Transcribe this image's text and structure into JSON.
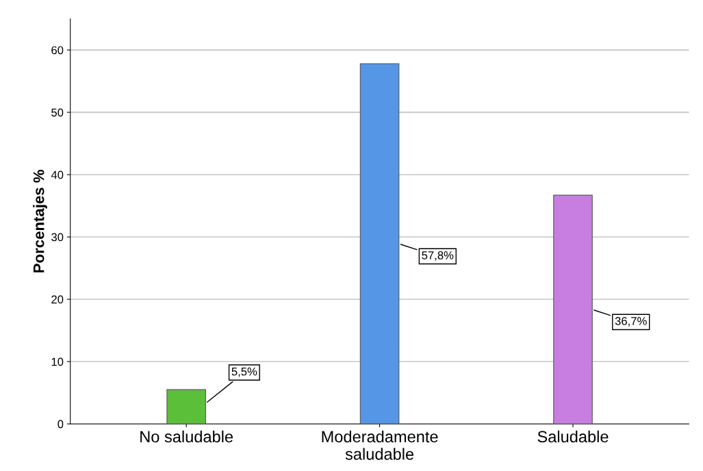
{
  "chart_data": {
    "type": "bar",
    "ylabel": "Porcentajes %",
    "categories": [
      "No saludable",
      "Moderadamente\nsaludable",
      "Saludable"
    ],
    "values": [
      5.5,
      57.8,
      36.7
    ],
    "colors": [
      "#5cbf3a",
      "#5596e6",
      "#c87de0"
    ],
    "value_labels": [
      "5,5%",
      "57,8%",
      "36,7%"
    ],
    "ylim": [
      0,
      65
    ],
    "yticks": [
      0,
      10,
      20,
      30,
      40,
      50,
      60
    ],
    "grid": "y"
  }
}
